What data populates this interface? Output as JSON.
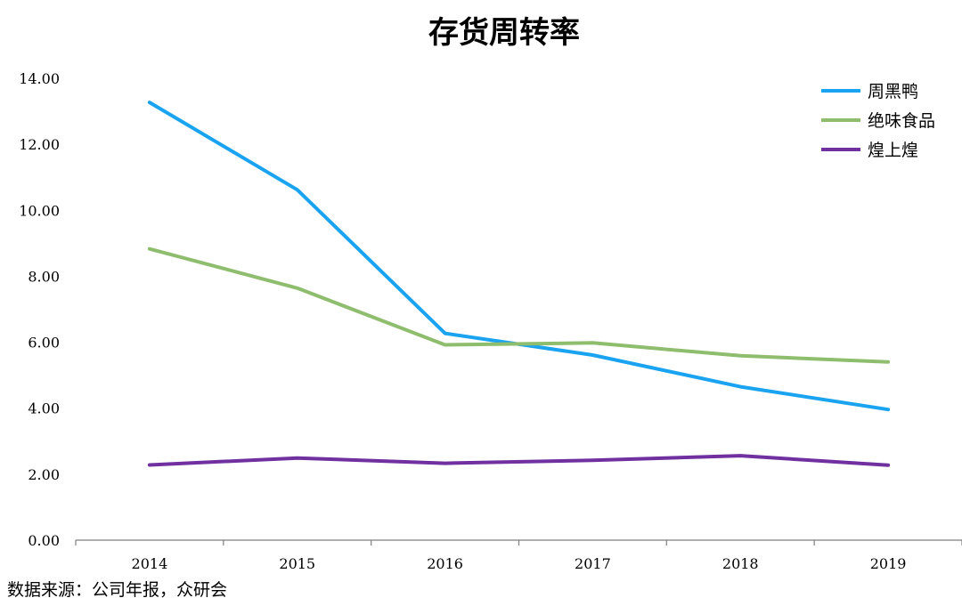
{
  "chart_data": {
    "type": "line",
    "title": "存货周转率",
    "categories": [
      "2014",
      "2015",
      "2016",
      "2017",
      "2018",
      "2019"
    ],
    "ylim": [
      0,
      14
    ],
    "yticks": [
      "0.00",
      "2.00",
      "4.00",
      "6.00",
      "8.00",
      "10.00",
      "12.00",
      "14.00"
    ],
    "grid": false,
    "legend_position": "top-right",
    "series": [
      {
        "name": "周黑鸭",
        "color": "#1aa3f0",
        "values": [
          13.27,
          10.62,
          6.27,
          5.61,
          4.65,
          3.96
        ]
      },
      {
        "name": "绝味食品",
        "color": "#8fbd6e",
        "values": [
          8.83,
          7.64,
          5.92,
          5.98,
          5.59,
          5.4
        ]
      },
      {
        "name": "煌上煌",
        "color": "#7030a0",
        "values": [
          2.28,
          2.49,
          2.33,
          2.42,
          2.56,
          2.27
        ]
      }
    ]
  },
  "source_note": "数据来源：公司年报，众研会"
}
